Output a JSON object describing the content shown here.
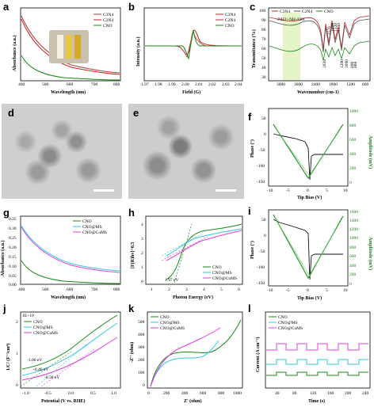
{
  "labels": {
    "a": "a",
    "b": "b",
    "c": "c",
    "d": "d",
    "e": "e",
    "f": "f",
    "g": "g",
    "h": "h",
    "i": "i",
    "j": "j",
    "k": "k",
    "l": "l"
  },
  "panel_a": {
    "ylabel": "Absorbance (a.u.)",
    "xlabel": "Wavelength (nm)",
    "xticks": [
      "400",
      "500",
      "600",
      "700",
      "800"
    ],
    "legend": [
      "C3N4",
      "C2N4",
      "CNO"
    ]
  },
  "panel_b": {
    "ylabel": "Intensity (a.u.)",
    "xlabel": "Field (G)",
    "xticks": [
      "1.97",
      "1.98",
      "1.99",
      "2.00",
      "2.01",
      "2.02",
      "2.03",
      "2.04"
    ],
    "legend": [
      "C3N4",
      "C2N4",
      "CNO"
    ]
  },
  "panel_c": {
    "ylabel": "Transmittance (%)",
    "xlabel": "Wavenumber (cm-1)",
    "xticks": [
      "3600",
      "3000",
      "2400",
      "1800",
      "1200",
      "600"
    ],
    "yticks": [
      "100",
      "90",
      "80",
      "70",
      "60",
      "50",
      "40",
      "30"
    ],
    "legend": [
      "C3N4",
      "C2N4",
      "CNO"
    ],
    "band_label": "-NH2/-NH-/OH",
    "peaks": [
      "1638",
      "1576",
      "1410",
      "1320",
      "1240",
      "1200",
      "1090",
      "890",
      "808"
    ]
  },
  "panel_f": {
    "ylabel": "Phase (°)",
    "ylabel2": "Amplitude (mV)",
    "xlabel": "Tip Bias (V)",
    "xticks": [
      "-10",
      "-5",
      "0",
      "5",
      "10"
    ],
    "yticks": [
      "50",
      "0",
      "-50",
      "-100",
      "-150"
    ],
    "yticks2": [
      "1000",
      "800",
      "600",
      "400",
      "200",
      "0"
    ]
  },
  "panel_g": {
    "ylabel": "Absorbance (a.u.)",
    "xlabel": "Wavelength (nm)",
    "xticks": [
      "400",
      "500",
      "600",
      "700",
      "800"
    ],
    "yticks": [
      "0.35",
      "0.30",
      "0.25",
      "0.20",
      "0.15",
      "0.10",
      "0.05",
      "0.00"
    ],
    "legend": [
      "CNO",
      "CNO@MS",
      "CNO@CuMS"
    ]
  },
  "panel_h": {
    "ylabel": "[F(R)hv]^0.5",
    "xlabel": "Photon Energy (eV)",
    "xticks": [
      "1",
      "2",
      "3",
      "4",
      "5",
      "6"
    ],
    "yticks": [
      "4",
      "3",
      "2",
      "1",
      "0"
    ],
    "legend": [
      "CNO",
      "CNO@MS",
      "CNO@CuMS"
    ],
    "annotation": "1.97 eV"
  },
  "panel_i": {
    "ylabel": "Phase (°)",
    "ylabel2": "Amplitude (mV)",
    "xlabel": "Tip Bias (V)",
    "xticks": [
      "-10",
      "-5",
      "0",
      "5",
      "10"
    ],
    "yticks": [
      "50",
      "0",
      "-50",
      "-100",
      "-150"
    ],
    "yticks2": [
      "1600",
      "1400",
      "1200",
      "1000",
      "800",
      "600",
      "400",
      "200",
      "0"
    ]
  },
  "panel_j": {
    "ylabel": "1/C² (F⁻²cm⁴)",
    "xlabel": "Potential (V vs. RHE)",
    "xticks": [
      "-1.0",
      "-0.5",
      "0.0",
      "0.5",
      "1.0"
    ],
    "yticks": [
      "2",
      "1",
      "0"
    ],
    "scale": "1E+10",
    "legend": [
      "CNO",
      "CNO@MS",
      "CNO@CuMS"
    ],
    "annotations": [
      "-1.06 eV",
      "-0.46 eV",
      "-0.38 eV"
    ]
  },
  "panel_k": {
    "ylabel": "-Z'' (ohm)",
    "xlabel": "Z' (ohm)",
    "xticks": [
      "0",
      "200",
      "400",
      "600",
      "800",
      "1000"
    ],
    "yticks": [
      "500",
      "400",
      "300",
      "200",
      "100",
      "0"
    ],
    "legend": [
      "CNO",
      "CNO@MS",
      "CNO@CuMS"
    ]
  },
  "panel_l": {
    "ylabel": "Current (A cm⁻²)",
    "xlabel": "Time (s)",
    "xticks": [
      "40",
      "80",
      "120",
      "160",
      "200",
      "240"
    ],
    "legend": [
      "CNO",
      "CNO@MS",
      "CNO@CuMS"
    ]
  },
  "colors": {
    "c3n4": "#cc2222",
    "c2n4": "#b03a3a",
    "cno": "#1a8a1a",
    "ms": "#33c6e0",
    "cums": "#e040e0",
    "amp": "#2a9a2a"
  }
}
